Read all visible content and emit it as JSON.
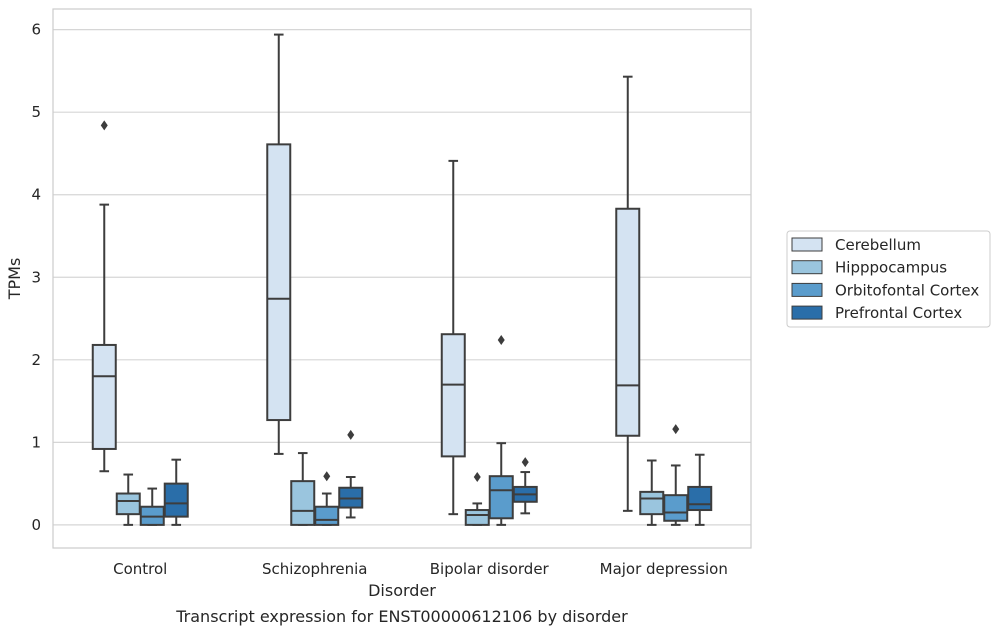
{
  "chart_data": {
    "type": "boxplot",
    "xlabel": "Disorder",
    "ylabel": "TPMs",
    "caption": "Transcript expression for ENST00000612106 by disorder",
    "ylim": [
      -0.28,
      6.25
    ],
    "yticks": [
      0,
      1,
      2,
      3,
      4,
      5,
      6
    ],
    "grid": "horizontal",
    "legend_position": "right",
    "categories": [
      "Control",
      "Schizophrenia",
      "Bipolar disorder",
      "Major depression"
    ],
    "series": [
      {
        "name": "Cerebellum",
        "color": "#d4e3f2",
        "boxes": [
          {
            "whisker_low": 0.65,
            "q1": 0.92,
            "median": 1.8,
            "q3": 2.18,
            "whisker_high": 3.88,
            "outliers": [
              4.84
            ]
          },
          {
            "whisker_low": 0.86,
            "q1": 1.27,
            "median": 2.74,
            "q3": 4.61,
            "whisker_high": 5.94,
            "outliers": []
          },
          {
            "whisker_low": 0.13,
            "q1": 0.83,
            "median": 1.7,
            "q3": 2.31,
            "whisker_high": 4.41,
            "outliers": []
          },
          {
            "whisker_low": 0.17,
            "q1": 1.08,
            "median": 1.69,
            "q3": 3.83,
            "whisker_high": 5.43,
            "outliers": []
          }
        ]
      },
      {
        "name": "Hipppocampus",
        "color": "#9ac5de",
        "boxes": [
          {
            "whisker_low": 0.0,
            "q1": 0.13,
            "median": 0.29,
            "q3": 0.38,
            "whisker_high": 0.61,
            "outliers": []
          },
          {
            "whisker_low": 0.0,
            "q1": 0.0,
            "median": 0.17,
            "q3": 0.53,
            "whisker_high": 0.87,
            "outliers": []
          },
          {
            "whisker_low": 0.0,
            "q1": 0.0,
            "median": 0.12,
            "q3": 0.18,
            "whisker_high": 0.26,
            "outliers": [
              0.58
            ]
          },
          {
            "whisker_low": 0.0,
            "q1": 0.13,
            "median": 0.32,
            "q3": 0.4,
            "whisker_high": 0.78,
            "outliers": []
          }
        ]
      },
      {
        "name": "Orbitofontal Cortex",
        "color": "#5a9ccc",
        "boxes": [
          {
            "whisker_low": 0.0,
            "q1": 0.0,
            "median": 0.1,
            "q3": 0.22,
            "whisker_high": 0.44,
            "outliers": []
          },
          {
            "whisker_low": 0.0,
            "q1": 0.0,
            "median": 0.06,
            "q3": 0.22,
            "whisker_high": 0.38,
            "outliers": [
              0.59
            ]
          },
          {
            "whisker_low": 0.0,
            "q1": 0.08,
            "median": 0.42,
            "q3": 0.59,
            "whisker_high": 0.99,
            "outliers": [
              2.24
            ]
          },
          {
            "whisker_low": 0.0,
            "q1": 0.05,
            "median": 0.15,
            "q3": 0.36,
            "whisker_high": 0.72,
            "outliers": [
              1.16
            ]
          }
        ]
      },
      {
        "name": "Prefrontal Cortex",
        "color": "#2a6ea9",
        "boxes": [
          {
            "whisker_low": 0.0,
            "q1": 0.1,
            "median": 0.26,
            "q3": 0.5,
            "whisker_high": 0.79,
            "outliers": []
          },
          {
            "whisker_low": 0.09,
            "q1": 0.21,
            "median": 0.32,
            "q3": 0.45,
            "whisker_high": 0.58,
            "outliers": [
              1.09
            ]
          },
          {
            "whisker_low": 0.14,
            "q1": 0.28,
            "median": 0.37,
            "q3": 0.46,
            "whisker_high": 0.64,
            "outliers": [
              0.76
            ]
          },
          {
            "whisker_low": 0.0,
            "q1": 0.18,
            "median": 0.25,
            "q3": 0.46,
            "whisker_high": 0.85,
            "outliers": []
          }
        ]
      }
    ]
  }
}
